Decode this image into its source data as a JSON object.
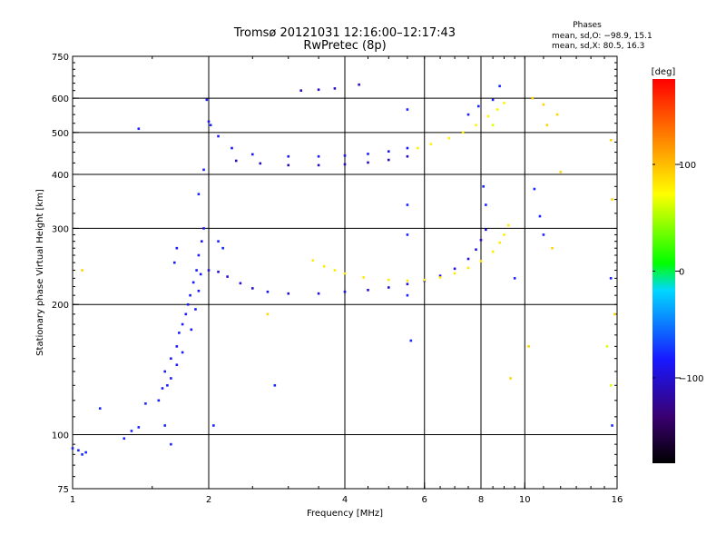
{
  "title": "Tromsø 20121031 12:16:00–12:17:43",
  "subtitle": "RwPretec (8p)",
  "phases": {
    "heading": "Phases",
    "line_o": "mean, sd,O: −98.9, 15.1",
    "line_x": "mean, sd,X:  80.5, 16.3"
  },
  "colorbar": {
    "label": "[deg]",
    "range": [
      -180,
      180
    ],
    "ticks": [
      "100",
      "0",
      "−100"
    ],
    "tick_values": [
      100,
      0,
      -100
    ]
  },
  "chart_data": {
    "type": "scatter",
    "xlabel": "Frequency [MHz]",
    "ylabel": "Stationary phase Virtual Height [km]",
    "xscale": "log",
    "yscale": "log",
    "xlim": [
      1,
      16
    ],
    "ylim": [
      75,
      750
    ],
    "xticks": [
      1,
      2,
      4,
      6,
      8,
      10,
      16
    ],
    "xtick_labels": [
      "1",
      "2",
      "4",
      "6",
      "8",
      "10",
      "16"
    ],
    "yticks": [
      75,
      100,
      200,
      300,
      400,
      500,
      600,
      750
    ],
    "ytick_labels": [
      "75",
      "100",
      "200",
      "300",
      "400",
      "500",
      "600",
      "750"
    ],
    "grid_x": [
      2,
      4,
      6,
      8,
      10
    ],
    "grid_y": [
      100,
      200,
      300,
      400,
      500,
      600
    ],
    "series": [
      {
        "phase": -110,
        "points": [
          [
            2.0,
            240
          ],
          [
            2.1,
            238
          ],
          [
            2.2,
            232
          ],
          [
            2.35,
            224
          ],
          [
            2.5,
            218
          ],
          [
            2.7,
            214
          ],
          [
            3.0,
            212
          ],
          [
            3.5,
            212
          ],
          [
            4.0,
            214
          ],
          [
            4.5,
            216
          ],
          [
            5.0,
            219
          ],
          [
            5.5,
            223
          ],
          [
            6.0,
            227
          ],
          [
            6.5,
            233
          ],
          [
            7.0,
            242
          ],
          [
            7.5,
            255
          ],
          [
            7.8,
            268
          ],
          [
            8.0,
            282
          ],
          [
            8.2,
            298
          ]
        ]
      },
      {
        "phase": 80,
        "points": [
          [
            3.4,
            253
          ],
          [
            3.6,
            245
          ],
          [
            3.8,
            240
          ],
          [
            4.0,
            236
          ],
          [
            4.4,
            231
          ],
          [
            5.0,
            228
          ],
          [
            5.5,
            227
          ],
          [
            6.0,
            228
          ],
          [
            6.5,
            231
          ],
          [
            7.0,
            236
          ],
          [
            7.5,
            243
          ],
          [
            8.0,
            252
          ],
          [
            8.5,
            265
          ],
          [
            8.8,
            278
          ],
          [
            9.0,
            290
          ],
          [
            9.2,
            305
          ]
        ]
      },
      {
        "phase": -100,
        "points": [
          [
            2.0,
            530
          ],
          [
            2.1,
            490
          ],
          [
            2.25,
            460
          ],
          [
            2.5,
            445
          ],
          [
            3.0,
            440
          ],
          [
            3.5,
            440
          ],
          [
            4.0,
            442
          ],
          [
            4.5,
            446
          ],
          [
            5.0,
            452
          ],
          [
            5.5,
            460
          ]
        ]
      },
      {
        "phase": -120,
        "points": [
          [
            2.3,
            430
          ],
          [
            2.6,
            424
          ],
          [
            3.0,
            420
          ],
          [
            3.5,
            420
          ],
          [
            4.0,
            422
          ],
          [
            4.5,
            426
          ],
          [
            5.0,
            432
          ],
          [
            5.5,
            440
          ]
        ]
      },
      {
        "phase": 75,
        "points": [
          [
            5.8,
            460
          ],
          [
            6.2,
            470
          ],
          [
            6.8,
            485
          ],
          [
            7.3,
            500
          ],
          [
            7.8,
            520
          ],
          [
            8.3,
            545
          ],
          [
            8.7,
            565
          ],
          [
            9.0,
            585
          ]
        ]
      },
      {
        "phase": -115,
        "points": [
          [
            3.2,
            625
          ],
          [
            3.5,
            628
          ],
          [
            3.8,
            632
          ],
          [
            4.3,
            645
          ]
        ]
      },
      {
        "phase": -100,
        "points": [
          [
            1.65,
            150
          ],
          [
            1.7,
            160
          ],
          [
            1.72,
            172
          ],
          [
            1.75,
            180
          ],
          [
            1.78,
            190
          ],
          [
            1.8,
            200
          ],
          [
            1.82,
            210
          ],
          [
            1.85,
            225
          ],
          [
            1.88,
            240
          ],
          [
            1.9,
            260
          ],
          [
            1.93,
            280
          ],
          [
            1.95,
            300
          ],
          [
            1.6,
            140
          ],
          [
            1.62,
            130
          ],
          [
            1.7,
            145
          ],
          [
            1.75,
            155
          ],
          [
            1.83,
            175
          ],
          [
            1.87,
            195
          ],
          [
            1.9,
            215
          ],
          [
            1.92,
            235
          ],
          [
            1.68,
            250
          ],
          [
            1.7,
            270
          ],
          [
            1.55,
            120
          ],
          [
            1.58,
            128
          ],
          [
            1.65,
            135
          ]
        ]
      },
      {
        "phase": -95,
        "points": [
          [
            1.0,
            93
          ],
          [
            1.03,
            92
          ],
          [
            1.05,
            90
          ],
          [
            1.07,
            91
          ],
          [
            1.3,
            98
          ],
          [
            1.35,
            102
          ],
          [
            1.4,
            104
          ],
          [
            1.45,
            118
          ],
          [
            1.15,
            115
          ],
          [
            1.6,
            105
          ],
          [
            1.65,
            95
          ],
          [
            1.4,
            510
          ],
          [
            1.95,
            410
          ],
          [
            1.9,
            360
          ],
          [
            1.98,
            595
          ],
          [
            2.02,
            520
          ],
          [
            2.05,
            105
          ],
          [
            2.1,
            280
          ],
          [
            2.15,
            270
          ],
          [
            5.5,
            340
          ],
          [
            5.5,
            290
          ],
          [
            5.5,
            210
          ],
          [
            5.6,
            165
          ],
          [
            8.1,
            375
          ],
          [
            8.2,
            340
          ],
          [
            8.5,
            595
          ],
          [
            8.8,
            640
          ],
          [
            9.5,
            230
          ],
          [
            10.5,
            370
          ],
          [
            10.8,
            320
          ],
          [
            11.0,
            290
          ],
          [
            15.5,
            230
          ],
          [
            15.6,
            105
          ],
          [
            2.8,
            130
          ],
          [
            5.5,
            565
          ],
          [
            7.9,
            575
          ],
          [
            7.5,
            550
          ]
        ]
      },
      {
        "phase": 90,
        "points": [
          [
            1.05,
            240
          ],
          [
            2.7,
            190
          ],
          [
            9.3,
            135
          ],
          [
            10.2,
            160
          ],
          [
            10.4,
            600
          ],
          [
            11.2,
            520
          ],
          [
            11.5,
            270
          ],
          [
            11.8,
            550
          ],
          [
            12.0,
            405
          ],
          [
            15.5,
            480
          ],
          [
            15.6,
            350
          ],
          [
            15.8,
            190
          ],
          [
            11.0,
            580
          ]
        ]
      },
      {
        "phase": 60,
        "points": [
          [
            8.5,
            520
          ],
          [
            15.2,
            160
          ],
          [
            15.5,
            130
          ]
        ]
      }
    ]
  }
}
